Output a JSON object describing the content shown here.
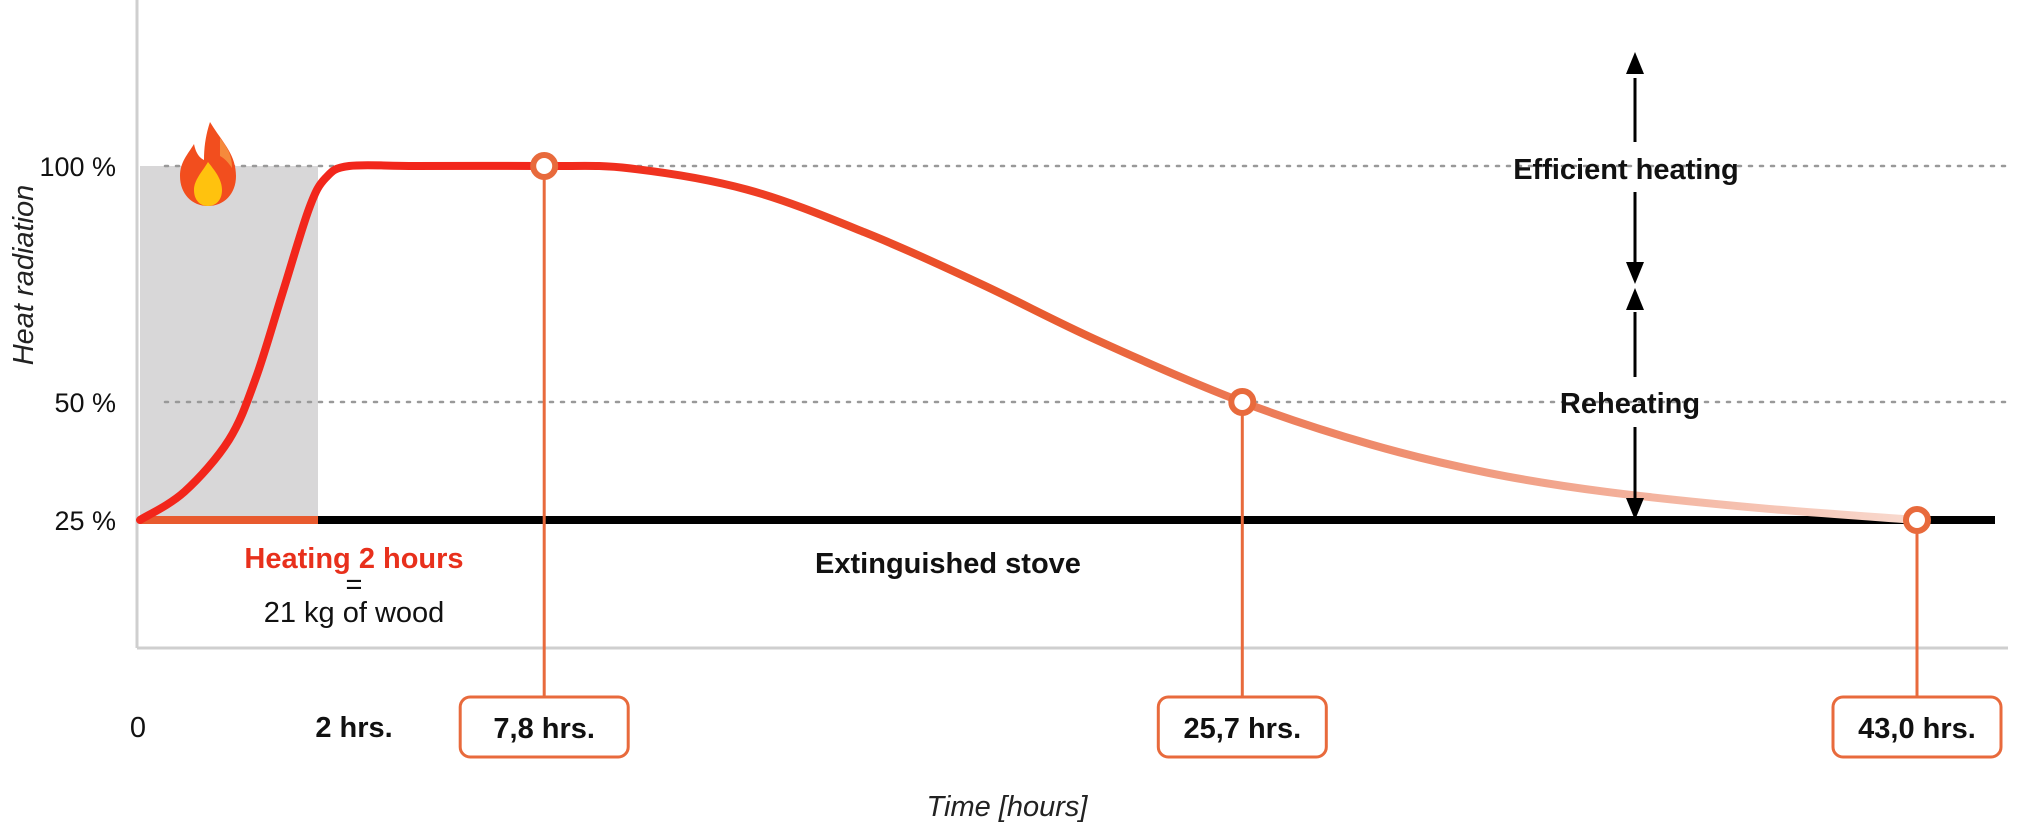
{
  "colors": {
    "curve_start": "#f2261b",
    "curve_mid": "#e85a2e",
    "curve_end": "#f9ddd3",
    "baseline": "#000000",
    "heating_band": "#d8d7d8",
    "marker": "#e86a3c",
    "heating_text": "#e8301c",
    "gridline": "#999999"
  },
  "chart_data": {
    "type": "line",
    "title": "",
    "xlabel": "Time [hours]",
    "ylabel": "Heat radiation",
    "ylim": [
      25,
      100
    ],
    "y_ticks": [
      {
        "value": 100,
        "label": "100 %"
      },
      {
        "value": 50,
        "label": "50 %"
      },
      {
        "value": 25,
        "label": "25 %"
      }
    ],
    "x_ticks": [
      {
        "value": 0,
        "label": "0"
      },
      {
        "value": 2,
        "label": "2 hrs."
      }
    ],
    "gridlines": [
      100,
      50
    ],
    "heating_phase": {
      "x_start": 0,
      "x_end": 2,
      "icon": "flame-icon"
    },
    "series": [
      {
        "points": [
          [
            0,
            25
          ],
          [
            0.5,
            31
          ],
          [
            1.0,
            42
          ],
          [
            1.3,
            55
          ],
          [
            1.6,
            73
          ],
          [
            1.9,
            91
          ],
          [
            2.2,
            97.5
          ],
          [
            2.8,
            100
          ],
          [
            4.5,
            100
          ],
          [
            7.8,
            100
          ],
          [
            10,
            99.5
          ],
          [
            13,
            95
          ],
          [
            16,
            86
          ],
          [
            19,
            75
          ],
          [
            22,
            63
          ],
          [
            25.7,
            50
          ],
          [
            29,
            41
          ],
          [
            32,
            35
          ],
          [
            35,
            31
          ],
          [
            39,
            27.5
          ],
          [
            43,
            25
          ]
        ]
      }
    ],
    "baseline": {
      "y": 25,
      "x_end": 45
    },
    "markers": [
      {
        "x": 7.8,
        "y": 100,
        "label": "7,8 hrs."
      },
      {
        "x": 25.7,
        "y": 50,
        "label": "25,7 hrs."
      },
      {
        "x": 43.0,
        "y": 25,
        "label": "43,0 hrs."
      }
    ],
    "annotations": {
      "heating_line1": "Heating 2 hours",
      "heating_line2": "=",
      "heating_line3": "21 kg of wood",
      "extinguished": "Extinguished stove",
      "efficient": "Efficient heating",
      "reheating": "Reheating"
    }
  }
}
